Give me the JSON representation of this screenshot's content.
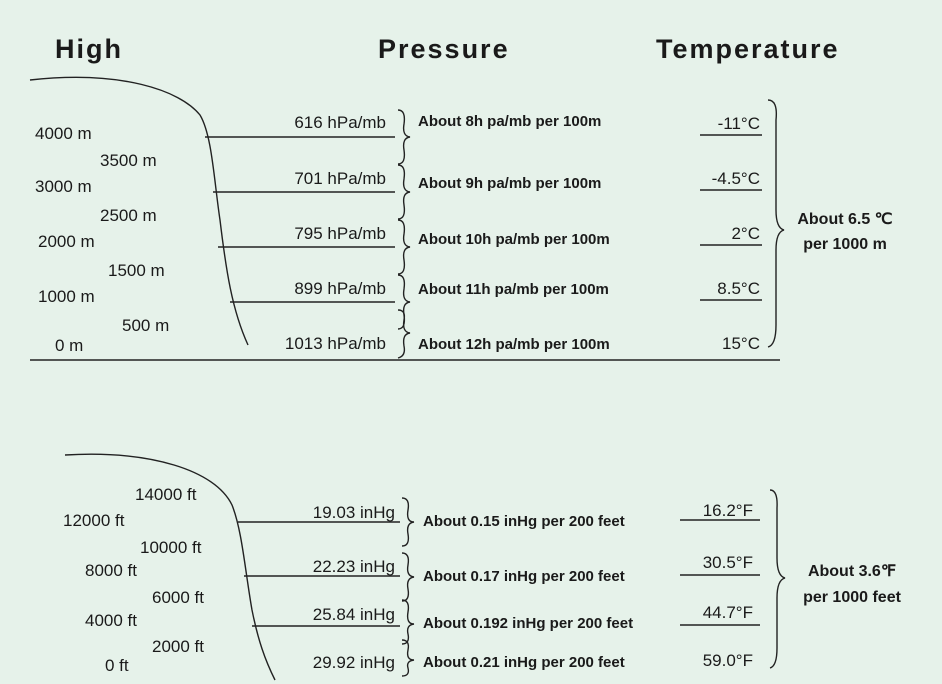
{
  "header": {
    "high": "High",
    "pressure": "Pressure",
    "temperature": "Temperature"
  },
  "metric": {
    "altitudes": [
      "4000 m",
      "3000 m",
      "2000 m",
      "1000 m",
      "0 m"
    ],
    "mid_altitudes": [
      "3500 m",
      "2500 m",
      "1500 m",
      "500 m"
    ],
    "pressures": [
      "616 hPa/mb",
      "701 hPa/mb",
      "795 hPa/mb",
      "899 hPa/mb",
      "1013 hPa/mb"
    ],
    "rates": [
      "About 8h pa/mb per 100m",
      "About 9h pa/mb per 100m",
      "About 10h pa/mb per 100m",
      "About 11h pa/mb per 100m",
      "About 12h pa/mb per 100m"
    ],
    "temperatures": [
      "-11°C",
      "-4.5°C",
      "2°C",
      "8.5°C",
      "15°C"
    ],
    "lapse": [
      "About 6.5 ℃",
      "per 1000 m"
    ]
  },
  "imperial": {
    "altitudes": [
      "12000 ft",
      "8000 ft",
      "4000 ft",
      "0 ft"
    ],
    "mid_altitudes": [
      "14000 ft",
      "10000 ft",
      "6000 ft",
      "2000 ft"
    ],
    "pressures": [
      "19.03 inHg",
      "22.23 inHg",
      "25.84 inHg",
      "29.92 inHg"
    ],
    "rates": [
      "About 0.15 inHg per 200 feet",
      "About 0.17 inHg per 200 feet",
      "About 0.192 inHg per 200 feet",
      "About 0.21 inHg per 200 feet"
    ],
    "temperatures": [
      "16.2°F",
      "30.5°F",
      "44.7°F",
      "59.0°F"
    ],
    "lapse": [
      "About 3.6℉",
      "per 1000 feet"
    ]
  }
}
